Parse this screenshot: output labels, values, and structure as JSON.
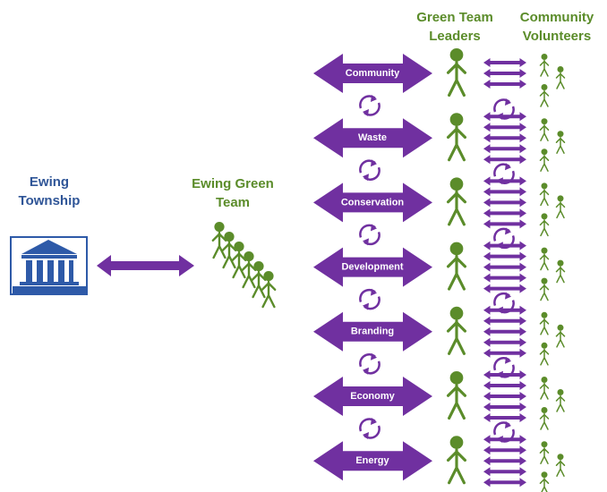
{
  "left": {
    "title": "Ewing Township"
  },
  "center": {
    "title": "Ewing Green Team"
  },
  "headers": {
    "leaders": "Green Team Leaders",
    "volunteers": "Community Volunteers"
  },
  "areas": [
    "Community",
    "Waste",
    "Conservation",
    "Development",
    "Branding",
    "Economy",
    "Energy"
  ]
}
